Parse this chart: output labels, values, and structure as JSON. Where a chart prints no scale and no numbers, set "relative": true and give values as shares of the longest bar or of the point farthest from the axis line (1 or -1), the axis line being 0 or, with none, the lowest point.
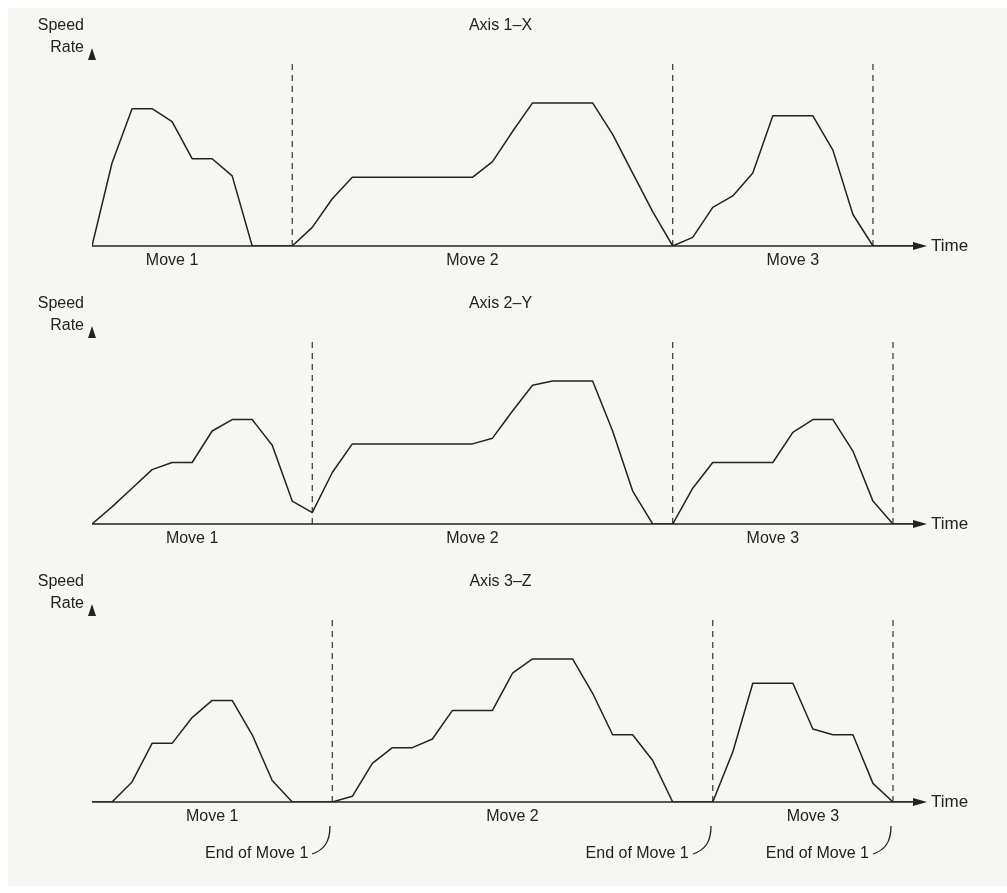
{
  "chart_data": [
    {
      "type": "line",
      "grid": "x",
      "title": "Axis 1–X",
      "xlabel": "Time",
      "ylabel": "Speed Rate",
      "relative": true,
      "tick_labels": "x",
      "categories": [
        null,
        null,
        null,
        null,
        "Move 1",
        null,
        null,
        null,
        null,
        null,
        null,
        null,
        null,
        null,
        null,
        null,
        null,
        null,
        null,
        "Move 2",
        null,
        null,
        null,
        null,
        null,
        null,
        null,
        null,
        null,
        null,
        null,
        null,
        null,
        null,
        null,
        "Move 3",
        null,
        null,
        null,
        null,
        null,
        null
      ],
      "series": [
        {
          "color": "#222222",
          "values": [
            0,
            0.58,
            0.96,
            0.96,
            0.87,
            0.61,
            0.61,
            0.49,
            0,
            0,
            0,
            0.13,
            0.33,
            0.48,
            0.48,
            0.48,
            0.48,
            0.48,
            0.48,
            0.48,
            0.59,
            0.8,
            1,
            1,
            1,
            1,
            0.78,
            0.51,
            0.24,
            0,
            0.06,
            0.27,
            0.35,
            0.51,
            0.91,
            0.91,
            0.91,
            0.67,
            0.22,
            0,
            0,
            0
          ]
        }
      ]
    },
    {
      "type": "line",
      "grid": "x",
      "title": "Axis 2–Y",
      "xlabel": "Time",
      "ylabel": "Speed Rate",
      "relative": true,
      "tick_labels": "x",
      "categories": [
        null,
        null,
        null,
        null,
        null,
        "Move 1",
        null,
        null,
        null,
        null,
        null,
        null,
        null,
        null,
        null,
        null,
        null,
        null,
        null,
        "Move 2",
        null,
        null,
        null,
        null,
        null,
        null,
        null,
        null,
        null,
        null,
        null,
        null,
        null,
        null,
        "Move 3",
        null,
        null,
        null,
        null,
        null,
        null,
        null
      ],
      "series": [
        {
          "color": "#222222",
          "values": [
            0,
            0.12,
            0.25,
            0.38,
            0.43,
            0.43,
            0.65,
            0.73,
            0.73,
            0.55,
            0.16,
            0.08,
            0.36,
            0.56,
            0.56,
            0.56,
            0.56,
            0.56,
            0.56,
            0.56,
            0.6,
            0.79,
            0.97,
            1,
            1,
            1,
            0.65,
            0.23,
            0,
            0,
            0.25,
            0.43,
            0.43,
            0.43,
            0.43,
            0.64,
            0.73,
            0.73,
            0.51,
            0.16,
            0,
            0
          ]
        }
      ]
    },
    {
      "type": "line",
      "grid": "x",
      "title": "Axis 3–Z",
      "xlabel": "Time",
      "ylabel": "Speed Rate",
      "relative": true,
      "tick_labels": "x",
      "categories": [
        null,
        null,
        null,
        null,
        null,
        null,
        "Move 1",
        null,
        null,
        null,
        null,
        null,
        null,
        null,
        null,
        null,
        null,
        null,
        null,
        null,
        null,
        "Move 2",
        null,
        null,
        null,
        null,
        null,
        null,
        null,
        null,
        null,
        null,
        null,
        null,
        null,
        null,
        "Move 3",
        null,
        null,
        null,
        null,
        null
      ],
      "series": [
        {
          "color": "#222222",
          "values": [
            0,
            0,
            0.14,
            0.41,
            0.41,
            0.59,
            0.71,
            0.71,
            0.47,
            0.15,
            0,
            0,
            0,
            0.04,
            0.27,
            0.38,
            0.38,
            0.44,
            0.64,
            0.64,
            0.64,
            0.9,
            1,
            1,
            1,
            0.76,
            0.47,
            0.47,
            0.29,
            0,
            0,
            0,
            0.35,
            0.83,
            0.83,
            0.83,
            0.51,
            0.47,
            0.47,
            0.13,
            0,
            0
          ]
        }
      ],
      "annotations": [
        "End of Move 1",
        "End of Move 1",
        "End of Move 1"
      ]
    }
  ]
}
